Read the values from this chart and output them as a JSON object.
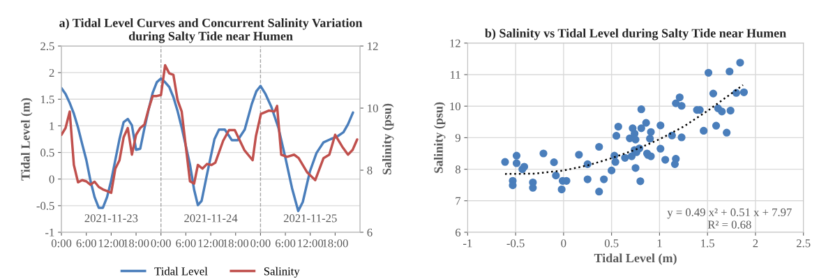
{
  "chart_data": [
    {
      "type": "line",
      "title": "a) Tidal Level Curves and Concurrent Salinity Variation\nduring Salty Tide near Humen",
      "ylabel": "Tidal Level (m)",
      "y2label": "Salinity (psu)",
      "xlim": [
        "2021-11-23T00:00",
        "2021-11-26T00:00"
      ],
      "xticks": [
        {
          "value": "2021-11-23T00:00",
          "label": "0:00"
        },
        {
          "value": "2021-11-23T06:00",
          "label": "6:00"
        },
        {
          "value": "2021-11-23T12:00",
          "label": "12:00"
        },
        {
          "value": "2021-11-23T18:00",
          "label": "18:00"
        },
        {
          "value": "2021-11-24T00:00",
          "label": "0:00"
        },
        {
          "value": "2021-11-24T06:00",
          "label": "6:00"
        },
        {
          "value": "2021-11-24T12:00",
          "label": "12:00"
        },
        {
          "value": "2021-11-24T18:00",
          "label": "18:00"
        },
        {
          "value": "2021-11-25T00:00",
          "label": "0:00"
        },
        {
          "value": "2021-11-25T06:00",
          "label": "6:00"
        },
        {
          "value": "2021-11-25T12:00",
          "label": "12:00"
        },
        {
          "value": "2021-11-25T18:00",
          "label": "18:00"
        }
      ],
      "ylim": [
        -1,
        2.5
      ],
      "yticks": [
        -1,
        -0.5,
        0,
        0.5,
        1,
        1.5,
        2,
        2.5
      ],
      "y2lim": [
        6,
        12
      ],
      "y2ticks": [
        6,
        8,
        10,
        12
      ],
      "grid": "y",
      "legend": "bottom",
      "line_style": "solid",
      "marker": "none",
      "ref_lines": [
        {
          "axis": "x",
          "value": "2021-11-24T00:00",
          "color": "#a6a6a6",
          "line_style": "dashed"
        },
        {
          "axis": "x",
          "value": "2021-11-25T00:00",
          "color": "#a6a6a6",
          "line_style": "dashed"
        }
      ],
      "annotations": [
        "2021-11-23",
        "2021-11-24",
        "2021-11-25"
      ],
      "series": [
        {
          "name": "Tidal Level",
          "color": "#4a7ebb",
          "x": [
            "2021-11-23T00:00",
            "2021-11-23T01:00",
            "2021-11-23T02:00",
            "2021-11-23T03:00",
            "2021-11-23T04:00",
            "2021-11-23T05:00",
            "2021-11-23T06:00",
            "2021-11-23T07:00",
            "2021-11-23T08:00",
            "2021-11-23T09:00",
            "2021-11-23T10:00",
            "2021-11-23T11:00",
            "2021-11-23T12:00",
            "2021-11-23T13:00",
            "2021-11-23T14:00",
            "2021-11-23T15:00",
            "2021-11-23T16:00",
            "2021-11-23T17:00",
            "2021-11-23T18:00",
            "2021-11-23T19:00",
            "2021-11-23T20:00",
            "2021-11-23T21:00",
            "2021-11-23T22:00",
            "2021-11-23T23:00",
            "2021-11-24T00:00",
            "2021-11-24T01:00",
            "2021-11-24T02:00",
            "2021-11-24T03:00",
            "2021-11-24T04:00",
            "2021-11-24T05:00",
            "2021-11-24T06:00",
            "2021-11-24T07:00",
            "2021-11-24T08:00",
            "2021-11-24T08:54",
            "2021-11-24T09:48",
            "2021-11-24T11:00",
            "2021-11-24T12:54",
            "2021-11-24T14:00",
            "2021-11-24T15:24",
            "2021-11-24T17:06",
            "2021-11-24T18:30",
            "2021-11-24T20:12",
            "2021-11-24T21:54",
            "2021-11-24T23:00",
            "2021-11-25T00:00",
            "2021-11-25T01:12",
            "2021-11-25T02:36",
            "2021-11-25T04:18",
            "2021-11-25T06:00",
            "2021-11-25T07:36",
            "2021-11-25T09:06",
            "2021-11-25T10:12",
            "2021-11-25T11:54",
            "2021-11-25T13:30",
            "2021-11-25T15:12",
            "2021-11-25T16:54",
            "2021-11-25T18:18",
            "2021-11-25T20:00",
            "2021-11-25T21:06",
            "2021-11-25T22:18"
          ],
          "values": [
            1.71,
            1.6,
            1.43,
            1.23,
            0.97,
            0.66,
            0.36,
            -0.03,
            -0.34,
            -0.54,
            -0.54,
            -0.34,
            -0.03,
            0.36,
            0.75,
            1.07,
            1.13,
            1.01,
            0.55,
            0.57,
            0.95,
            1.3,
            1.62,
            1.82,
            1.89,
            1.82,
            1.73,
            1.54,
            1.28,
            0.97,
            0.62,
            0.27,
            -0.2,
            -0.49,
            -0.41,
            0.05,
            0.75,
            0.93,
            0.93,
            0.73,
            0.73,
            0.93,
            1.41,
            1.65,
            1.75,
            1.6,
            1.36,
            0.97,
            0.4,
            -0.17,
            -0.6,
            -0.43,
            0.14,
            0.49,
            0.69,
            0.75,
            0.79,
            0.88,
            1.03,
            1.25
          ]
        },
        {
          "name": "Salinity",
          "color": "#c0504d",
          "axis": "y2",
          "x": [
            "2021-11-23T00:00",
            "2021-11-23T01:00",
            "2021-11-23T02:00",
            "2021-11-23T03:00",
            "2021-11-23T04:00",
            "2021-11-23T05:00",
            "2021-11-23T06:00",
            "2021-11-23T07:00",
            "2021-11-23T08:00",
            "2021-11-23T09:00",
            "2021-11-23T10:00",
            "2021-11-23T11:00",
            "2021-11-23T12:00",
            "2021-11-23T13:00",
            "2021-11-23T14:00",
            "2021-11-23T15:00",
            "2021-11-23T16:00",
            "2021-11-23T17:00",
            "2021-11-23T18:00",
            "2021-11-23T19:00",
            "2021-11-23T20:00",
            "2021-11-23T21:00",
            "2021-11-23T22:00",
            "2021-11-23T23:00",
            "2021-11-24T00:00",
            "2021-11-24T01:00",
            "2021-11-24T02:00",
            "2021-11-24T03:00",
            "2021-11-24T04:00",
            "2021-11-24T05:00",
            "2021-11-24T06:00",
            "2021-11-24T07:00",
            "2021-11-24T08:00",
            "2021-11-24T08:54",
            "2021-11-24T10:00",
            "2021-11-24T11:06",
            "2021-11-24T12:12",
            "2021-11-24T13:06",
            "2021-11-24T15:00",
            "2021-11-24T16:24",
            "2021-11-24T17:48",
            "2021-11-24T20:06",
            "2021-11-24T22:06",
            "2021-11-24T22:54",
            "2021-11-25T00:06",
            "2021-11-25T02:00",
            "2021-11-25T03:24",
            "2021-11-25T04:00",
            "2021-11-25T05:00",
            "2021-11-25T06:24",
            "2021-11-25T08:06",
            "2021-11-25T09:12",
            "2021-11-25T11:12",
            "2021-11-25T13:12",
            "2021-11-25T15:12",
            "2021-11-25T16:36",
            "2021-11-25T18:00",
            "2021-11-25T19:42",
            "2021-11-25T21:06",
            "2021-11-25T22:12",
            "2021-11-25T23:18"
          ],
          "values": [
            9.14,
            9.36,
            9.89,
            8.17,
            7.61,
            7.68,
            7.64,
            7.53,
            7.63,
            7.46,
            7.38,
            7.33,
            7.27,
            8.05,
            8.32,
            9.06,
            9.36,
            8.5,
            9.14,
            9.36,
            9.47,
            9.96,
            10.39,
            10.39,
            10.42,
            11.38,
            11.12,
            11.07,
            10.26,
            9.89,
            8.76,
            7.64,
            7.57,
            8.17,
            8.05,
            8.2,
            8.17,
            8.24,
            8.95,
            9.29,
            9.29,
            8.65,
            8.32,
            9.1,
            9.81,
            9.92,
            9.89,
            10.07,
            8.5,
            8.43,
            8.5,
            8.39,
            7.94,
            7.68,
            8.39,
            8.5,
            9.14,
            8.76,
            8.5,
            8.65,
            8.99
          ]
        }
      ]
    },
    {
      "type": "scatter",
      "title": "b) Salinity vs Tidal Level during Salty Tide near Humen",
      "xlabel": "Tidal Level (m)",
      "ylabel": "Salinity (psu)",
      "xlim": [
        -1,
        2.5
      ],
      "xticks": [
        -1,
        -0.5,
        0,
        0.5,
        1,
        1.5,
        2,
        2.5
      ],
      "ylim": [
        6,
        12
      ],
      "yticks": [
        6,
        7,
        8,
        9,
        10,
        11,
        12
      ],
      "grid": true,
      "marker": "circle",
      "annotations": [
        "y = 0.49 x² + 0.51 x + 7.97",
        "R² = 0.68"
      ],
      "series": [
        {
          "color": "#4a7ebb",
          "x": [
            -0.61,
            -0.53,
            -0.53,
            -0.49,
            -0.49,
            -0.43,
            -0.41,
            -0.32,
            -0.32,
            -0.21,
            -0.1,
            -0.08,
            -0.02,
            -0.01,
            0.03,
            0.16,
            0.25,
            0.25,
            0.37,
            0.37,
            0.42,
            0.5,
            0.53,
            0.54,
            0.55,
            0.57,
            0.64,
            0.69,
            0.71,
            0.72,
            0.74,
            0.75,
            0.75,
            0.74,
            0.76,
            0.8,
            0.79,
            0.81,
            0.81,
            0.86,
            0.87,
            0.88,
            0.91,
            0.9,
            0.91,
            1.01,
            1.01,
            1.06,
            1.13,
            1.16,
            1.17,
            1.17,
            1.21,
            1.23,
            1.23,
            1.39,
            1.42,
            1.46,
            1.51,
            1.56,
            1.59,
            1.61,
            1.65,
            1.7,
            1.73,
            1.74,
            1.8,
            1.84,
            1.88
          ],
          "values": [
            8.23,
            7.63,
            7.49,
            8.43,
            8.19,
            8.0,
            8.08,
            7.58,
            7.41,
            8.5,
            8.22,
            7.8,
            7.36,
            7.63,
            7.63,
            8.46,
            8.16,
            7.68,
            8.71,
            7.29,
            7.68,
            7.96,
            8.43,
            8.23,
            9.06,
            9.35,
            8.36,
            8.98,
            8.41,
            9.3,
            9.13,
            8.04,
            8.94,
            8.61,
            8.54,
            7.62,
            8.66,
            9.3,
            9.9,
            9.47,
            8.5,
            8.45,
            8.41,
            8.97,
            9.18,
            8.65,
            9.39,
            8.3,
            9.07,
            8.16,
            8.33,
            10.09,
            10.28,
            10.01,
            9.01,
            9.88,
            9.88,
            9.22,
            11.06,
            10.4,
            9.38,
            9.93,
            9.83,
            9.16,
            11.1,
            9.86,
            10.42,
            11.38,
            10.44
          ]
        },
        {
          "type": "line",
          "color": "#000000",
          "line_style": "dotted",
          "marker": "none",
          "x": [
            -0.61,
            -0.3,
            0,
            0.25,
            0.5,
            0.75,
            1,
            1.25,
            1.5,
            1.87
          ],
          "values": [
            7.85,
            7.86,
            7.96,
            8.12,
            8.35,
            8.62,
            8.95,
            9.35,
            9.85,
            10.67
          ]
        }
      ]
    }
  ]
}
